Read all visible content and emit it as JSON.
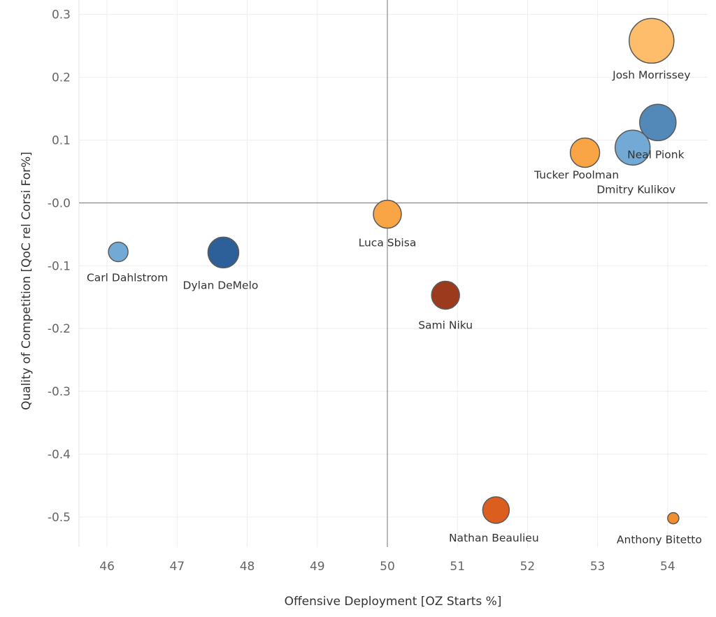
{
  "chart_data": {
    "type": "scatter",
    "title": "",
    "xlabel": "Offensive Deployment [OZ Starts %]",
    "ylabel": "Quality of Competition [QoC rel Corsi For%]",
    "xlim": [
      45.6,
      54.57
    ],
    "ylim": [
      -0.548,
      0.323
    ],
    "xticks": [
      "46",
      "47",
      "48",
      "49",
      "50",
      "51",
      "52",
      "53",
      "54"
    ],
    "yticks": [
      "0.3",
      "0.2",
      "0.1",
      "-0.0",
      "-0.1",
      "-0.2",
      "-0.3",
      "-0.4",
      "-0.5"
    ],
    "grid": true,
    "reference_lines": {
      "x": 50,
      "y": 0
    },
    "points": [
      {
        "label": "Josh Morrissey",
        "x": 53.77,
        "y": 0.258,
        "size": 32,
        "color": "#fdbd6b"
      },
      {
        "label": "Neal Pionk",
        "x": 53.86,
        "y": 0.128,
        "size": 26,
        "color": "#5389b9"
      },
      {
        "label": "Dmitry Kulikov",
        "x": 53.5,
        "y": 0.088,
        "size": 25,
        "color": "#73a9d5"
      },
      {
        "label": "Tucker Poolman",
        "x": 52.82,
        "y": 0.08,
        "size": 21,
        "color": "#f9a445"
      },
      {
        "label": "Luca Sbisa",
        "x": 50.0,
        "y": -0.018,
        "size": 20,
        "color": "#f9a445"
      },
      {
        "label": "Carl Dahlstrom",
        "x": 46.16,
        "y": -0.078,
        "size": 14,
        "color": "#73a9d5"
      },
      {
        "label": "Dylan DeMelo",
        "x": 47.66,
        "y": -0.079,
        "size": 22,
        "color": "#2d5f98"
      },
      {
        "label": "Sami Niku",
        "x": 50.83,
        "y": -0.147,
        "size": 20,
        "color": "#9c3a1e"
      },
      {
        "label": "Nathan Beaulieu",
        "x": 51.55,
        "y": -0.489,
        "size": 19,
        "color": "#db5e1f"
      },
      {
        "label": "Anthony Bitetto",
        "x": 54.08,
        "y": -0.502,
        "size": 8,
        "color": "#f28e2b"
      }
    ]
  }
}
